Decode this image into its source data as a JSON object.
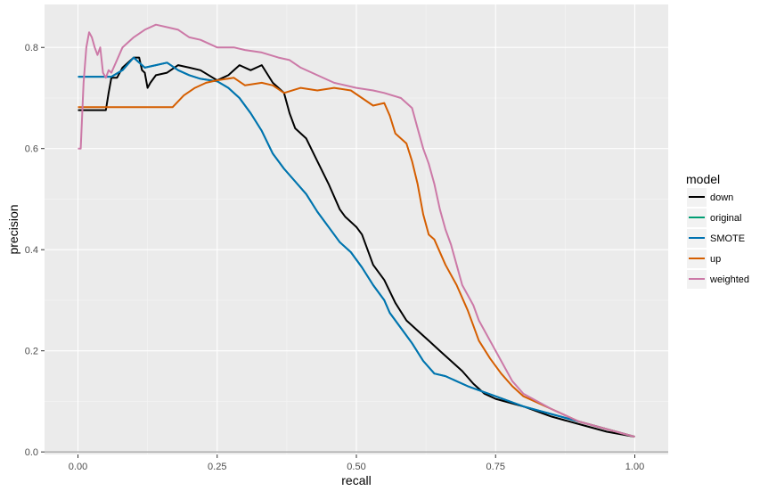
{
  "chart_data": {
    "type": "line",
    "title": "",
    "xlabel": "recall",
    "ylabel": "precision",
    "xlim": [
      -0.06,
      1.06
    ],
    "ylim": [
      -0.005,
      0.885
    ],
    "x_ticks": [
      0.0,
      0.25,
      0.5,
      0.75,
      1.0
    ],
    "x_tick_labels": [
      "0.00",
      "0.25",
      "0.50",
      "0.75",
      "1.00"
    ],
    "y_ticks": [
      0.0,
      0.2,
      0.4,
      0.6,
      0.8
    ],
    "y_tick_labels": [
      "0.0",
      "0.2",
      "0.4",
      "0.6",
      "0.8"
    ],
    "grid": true,
    "legend": {
      "title": "model",
      "placement": "right"
    },
    "series": [
      {
        "name": "down",
        "color": "#000000",
        "points": [
          [
            0.0,
            0.676
          ],
          [
            0.05,
            0.676
          ],
          [
            0.055,
            0.71
          ],
          [
            0.06,
            0.74
          ],
          [
            0.07,
            0.74
          ],
          [
            0.08,
            0.76
          ],
          [
            0.1,
            0.78
          ],
          [
            0.11,
            0.78
          ],
          [
            0.115,
            0.755
          ],
          [
            0.12,
            0.75
          ],
          [
            0.125,
            0.72
          ],
          [
            0.13,
            0.73
          ],
          [
            0.14,
            0.745
          ],
          [
            0.16,
            0.75
          ],
          [
            0.18,
            0.765
          ],
          [
            0.2,
            0.76
          ],
          [
            0.22,
            0.755
          ],
          [
            0.25,
            0.735
          ],
          [
            0.27,
            0.745
          ],
          [
            0.29,
            0.765
          ],
          [
            0.31,
            0.755
          ],
          [
            0.33,
            0.765
          ],
          [
            0.35,
            0.73
          ],
          [
            0.37,
            0.71
          ],
          [
            0.38,
            0.67
          ],
          [
            0.39,
            0.64
          ],
          [
            0.41,
            0.62
          ],
          [
            0.43,
            0.575
          ],
          [
            0.45,
            0.53
          ],
          [
            0.47,
            0.48
          ],
          [
            0.48,
            0.465
          ],
          [
            0.5,
            0.445
          ],
          [
            0.51,
            0.43
          ],
          [
            0.53,
            0.37
          ],
          [
            0.55,
            0.34
          ],
          [
            0.57,
            0.295
          ],
          [
            0.59,
            0.26
          ],
          [
            0.61,
            0.24
          ],
          [
            0.63,
            0.22
          ],
          [
            0.65,
            0.2
          ],
          [
            0.67,
            0.18
          ],
          [
            0.69,
            0.16
          ],
          [
            0.71,
            0.135
          ],
          [
            0.73,
            0.115
          ],
          [
            0.75,
            0.105
          ],
          [
            0.8,
            0.09
          ],
          [
            0.85,
            0.07
          ],
          [
            0.9,
            0.055
          ],
          [
            0.95,
            0.04
          ],
          [
            1.0,
            0.03
          ]
        ]
      },
      {
        "name": "original",
        "color": "#009E73",
        "points": [
          [
            0.0,
            0.742
          ],
          [
            0.06,
            0.742
          ],
          [
            0.08,
            0.755
          ],
          [
            0.1,
            0.78
          ],
          [
            0.12,
            0.76
          ],
          [
            0.14,
            0.765
          ],
          [
            0.16,
            0.77
          ],
          [
            0.18,
            0.755
          ],
          [
            0.2,
            0.745
          ],
          [
            0.22,
            0.738
          ],
          [
            0.25,
            0.733
          ],
          [
            0.27,
            0.72
          ],
          [
            0.29,
            0.7
          ],
          [
            0.31,
            0.67
          ],
          [
            0.33,
            0.635
          ],
          [
            0.35,
            0.59
          ],
          [
            0.37,
            0.56
          ],
          [
            0.39,
            0.535
          ],
          [
            0.41,
            0.51
          ],
          [
            0.43,
            0.475
          ],
          [
            0.45,
            0.445
          ],
          [
            0.47,
            0.415
          ],
          [
            0.49,
            0.395
          ],
          [
            0.51,
            0.365
          ],
          [
            0.53,
            0.33
          ],
          [
            0.55,
            0.3
          ],
          [
            0.56,
            0.275
          ],
          [
            0.58,
            0.245
          ],
          [
            0.6,
            0.215
          ],
          [
            0.62,
            0.18
          ],
          [
            0.64,
            0.155
          ],
          [
            0.66,
            0.15
          ],
          [
            0.7,
            0.13
          ],
          [
            0.75,
            0.11
          ],
          [
            0.8,
            0.09
          ],
          [
            0.85,
            0.075
          ],
          [
            0.9,
            0.06
          ],
          [
            0.95,
            0.045
          ],
          [
            1.0,
            0.03
          ]
        ]
      },
      {
        "name": "SMOTE",
        "color": "#0072B2",
        "points": [
          [
            0.0,
            0.742
          ],
          [
            0.06,
            0.742
          ],
          [
            0.08,
            0.755
          ],
          [
            0.1,
            0.78
          ],
          [
            0.12,
            0.76
          ],
          [
            0.14,
            0.765
          ],
          [
            0.16,
            0.77
          ],
          [
            0.18,
            0.755
          ],
          [
            0.2,
            0.745
          ],
          [
            0.22,
            0.738
          ],
          [
            0.25,
            0.733
          ],
          [
            0.27,
            0.72
          ],
          [
            0.29,
            0.7
          ],
          [
            0.31,
            0.67
          ],
          [
            0.33,
            0.635
          ],
          [
            0.35,
            0.59
          ],
          [
            0.37,
            0.56
          ],
          [
            0.39,
            0.535
          ],
          [
            0.41,
            0.51
          ],
          [
            0.43,
            0.475
          ],
          [
            0.45,
            0.445
          ],
          [
            0.47,
            0.415
          ],
          [
            0.49,
            0.395
          ],
          [
            0.51,
            0.365
          ],
          [
            0.53,
            0.33
          ],
          [
            0.55,
            0.3
          ],
          [
            0.56,
            0.275
          ],
          [
            0.58,
            0.245
          ],
          [
            0.6,
            0.215
          ],
          [
            0.62,
            0.18
          ],
          [
            0.64,
            0.155
          ],
          [
            0.66,
            0.15
          ],
          [
            0.7,
            0.13
          ],
          [
            0.75,
            0.11
          ],
          [
            0.8,
            0.09
          ],
          [
            0.85,
            0.075
          ],
          [
            0.9,
            0.06
          ],
          [
            0.95,
            0.045
          ],
          [
            1.0,
            0.03
          ]
        ]
      },
      {
        "name": "up",
        "color": "#D55E00",
        "points": [
          [
            0.0,
            0.682
          ],
          [
            0.17,
            0.682
          ],
          [
            0.19,
            0.705
          ],
          [
            0.21,
            0.72
          ],
          [
            0.23,
            0.73
          ],
          [
            0.25,
            0.735
          ],
          [
            0.28,
            0.74
          ],
          [
            0.3,
            0.725
          ],
          [
            0.33,
            0.73
          ],
          [
            0.35,
            0.725
          ],
          [
            0.37,
            0.71
          ],
          [
            0.4,
            0.72
          ],
          [
            0.43,
            0.715
          ],
          [
            0.46,
            0.72
          ],
          [
            0.49,
            0.715
          ],
          [
            0.51,
            0.7
          ],
          [
            0.53,
            0.685
          ],
          [
            0.55,
            0.69
          ],
          [
            0.56,
            0.665
          ],
          [
            0.57,
            0.63
          ],
          [
            0.59,
            0.61
          ],
          [
            0.6,
            0.575
          ],
          [
            0.61,
            0.53
          ],
          [
            0.62,
            0.47
          ],
          [
            0.63,
            0.43
          ],
          [
            0.64,
            0.42
          ],
          [
            0.66,
            0.37
          ],
          [
            0.68,
            0.33
          ],
          [
            0.7,
            0.28
          ],
          [
            0.72,
            0.22
          ],
          [
            0.74,
            0.185
          ],
          [
            0.76,
            0.155
          ],
          [
            0.78,
            0.13
          ],
          [
            0.8,
            0.11
          ],
          [
            0.85,
            0.085
          ],
          [
            0.9,
            0.06
          ],
          [
            0.95,
            0.045
          ],
          [
            1.0,
            0.03
          ]
        ]
      },
      {
        "name": "weighted",
        "color": "#CC79A7",
        "points": [
          [
            0.0,
            0.6
          ],
          [
            0.005,
            0.6
          ],
          [
            0.01,
            0.73
          ],
          [
            0.015,
            0.8
          ],
          [
            0.02,
            0.83
          ],
          [
            0.025,
            0.82
          ],
          [
            0.03,
            0.8
          ],
          [
            0.035,
            0.785
          ],
          [
            0.04,
            0.8
          ],
          [
            0.045,
            0.75
          ],
          [
            0.05,
            0.74
          ],
          [
            0.055,
            0.755
          ],
          [
            0.06,
            0.75
          ],
          [
            0.07,
            0.775
          ],
          [
            0.08,
            0.8
          ],
          [
            0.1,
            0.82
          ],
          [
            0.12,
            0.835
          ],
          [
            0.14,
            0.845
          ],
          [
            0.16,
            0.84
          ],
          [
            0.18,
            0.835
          ],
          [
            0.2,
            0.82
          ],
          [
            0.22,
            0.815
          ],
          [
            0.25,
            0.8
          ],
          [
            0.28,
            0.8
          ],
          [
            0.3,
            0.795
          ],
          [
            0.33,
            0.79
          ],
          [
            0.36,
            0.78
          ],
          [
            0.38,
            0.775
          ],
          [
            0.4,
            0.76
          ],
          [
            0.43,
            0.745
          ],
          [
            0.46,
            0.73
          ],
          [
            0.5,
            0.72
          ],
          [
            0.53,
            0.715
          ],
          [
            0.55,
            0.71
          ],
          [
            0.58,
            0.7
          ],
          [
            0.6,
            0.68
          ],
          [
            0.61,
            0.64
          ],
          [
            0.62,
            0.6
          ],
          [
            0.63,
            0.57
          ],
          [
            0.64,
            0.53
          ],
          [
            0.65,
            0.48
          ],
          [
            0.66,
            0.44
          ],
          [
            0.67,
            0.41
          ],
          [
            0.68,
            0.37
          ],
          [
            0.69,
            0.33
          ],
          [
            0.71,
            0.29
          ],
          [
            0.72,
            0.26
          ],
          [
            0.74,
            0.22
          ],
          [
            0.76,
            0.18
          ],
          [
            0.78,
            0.14
          ],
          [
            0.8,
            0.115
          ],
          [
            0.85,
            0.085
          ],
          [
            0.9,
            0.06
          ],
          [
            0.95,
            0.045
          ],
          [
            1.0,
            0.03
          ]
        ]
      }
    ]
  }
}
